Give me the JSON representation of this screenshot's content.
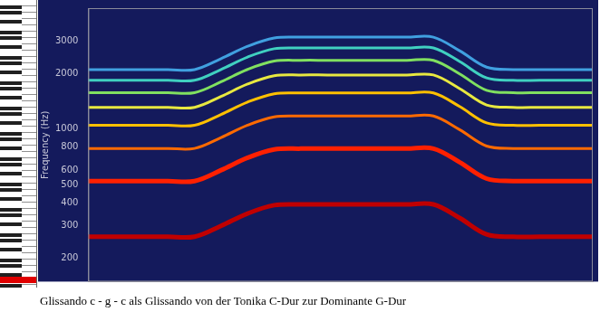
{
  "chart_data": {
    "type": "line",
    "title": "Glissando c - g - c als Glissando von der Tonika C-Dur zur Dominante G-Dur",
    "y_label": "Frequency (Hz)",
    "categories": [
      null,
      null,
      null,
      null,
      null,
      null,
      null,
      null,
      null,
      null,
      null,
      null,
      null,
      null,
      null,
      null,
      null,
      null,
      null,
      null
    ],
    "series": [
      {
        "color": "#c00000",
        "values": [
          262,
          262,
          262,
          262,
          262,
          300,
          350,
          388,
          392,
          392,
          392,
          392,
          392,
          392,
          330,
          270,
          262,
          262,
          262,
          262
        ]
      },
      {
        "color": "#ff2000",
        "values": [
          524,
          524,
          524,
          524,
          524,
          600,
          700,
          776,
          784,
          784,
          784,
          784,
          784,
          784,
          660,
          540,
          524,
          524,
          524,
          524
        ]
      },
      {
        "color": "#ff6a00",
        "values": [
          786,
          786,
          786,
          786,
          786,
          900,
          1050,
          1164,
          1176,
          1176,
          1176,
          1176,
          1176,
          1176,
          990,
          810,
          786,
          786,
          786,
          786
        ]
      },
      {
        "color": "#ffc000",
        "values": [
          1048,
          1048,
          1048,
          1048,
          1048,
          1200,
          1400,
          1552,
          1568,
          1568,
          1568,
          1568,
          1568,
          1568,
          1320,
          1080,
          1048,
          1048,
          1048,
          1048
        ]
      },
      {
        "color": "#e8e840",
        "values": [
          1310,
          1310,
          1310,
          1310,
          1310,
          1500,
          1750,
          1940,
          1960,
          1960,
          1960,
          1960,
          1960,
          1960,
          1650,
          1350,
          1310,
          1310,
          1310,
          1310
        ]
      },
      {
        "color": "#80e060",
        "values": [
          1572,
          1572,
          1572,
          1572,
          1572,
          1800,
          2100,
          2328,
          2352,
          2352,
          2352,
          2352,
          2352,
          2352,
          1980,
          1620,
          1572,
          1572,
          1572,
          1572
        ]
      },
      {
        "color": "#40d0c0",
        "values": [
          1834,
          1834,
          1834,
          1834,
          1834,
          2100,
          2450,
          2716,
          2744,
          2744,
          2744,
          2744,
          2744,
          2744,
          2310,
          1890,
          1834,
          1834,
          1834,
          1834
        ]
      },
      {
        "color": "#40a0e0",
        "values": [
          2096,
          2096,
          2096,
          2096,
          2096,
          2400,
          2800,
          3104,
          3136,
          3136,
          3136,
          3136,
          3136,
          3136,
          2640,
          2160,
          2096,
          2096,
          2096,
          2096
        ]
      }
    ],
    "ylim": [
      150,
      4500
    ],
    "yticks": [
      200,
      300,
      400,
      500,
      600,
      800,
      1000,
      2000,
      3000
    ],
    "log": "y",
    "grid": false,
    "tick_labels": "y",
    "marker": "none",
    "line_style": "solid"
  }
}
